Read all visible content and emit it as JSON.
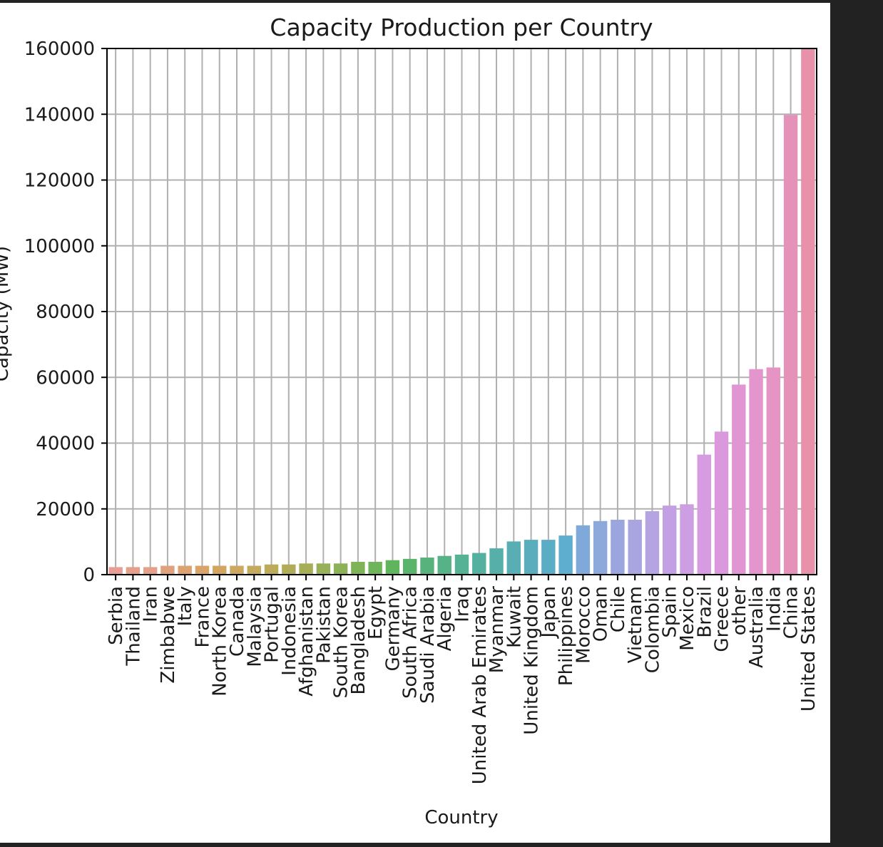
{
  "colors": {
    "page_background": "#222222",
    "figure_background": "#ffffff",
    "grid": "#b0b0b0",
    "axes": "#000000",
    "text": "#1a1a1a"
  },
  "chart_data": {
    "type": "bar",
    "title": "Capacity Production per Country",
    "xlabel": "Country",
    "ylabel": "Capacity (MW)",
    "ylim": [
      0,
      160000
    ],
    "yticks": [
      0,
      20000,
      40000,
      60000,
      80000,
      100000,
      120000,
      140000,
      160000
    ],
    "grid": true,
    "legend": "none",
    "categories": [
      "Serbia",
      "Thailand",
      "Iran",
      "Zimbabwe",
      "Italy",
      "France",
      "North Korea",
      "Canada",
      "Malaysia",
      "Portugal",
      "Indonesia",
      "Afghanistan",
      "Pakistan",
      "South Korea",
      "Bangladesh",
      "Egypt",
      "Germany",
      "South Africa",
      "Saudi Arabia",
      "Algeria",
      "Iraq",
      "United Arab Emirates",
      "Myanmar",
      "Kuwait",
      "United Kingdom",
      "Japan",
      "Philippines",
      "Morocco",
      "Oman",
      "Chile",
      "Vietnam",
      "Colombia",
      "Spain",
      "Mexico",
      "Brazil",
      "Greece",
      "other",
      "Australia",
      "India",
      "China",
      "United States"
    ],
    "values": [
      2300,
      2300,
      2300,
      2700,
      2700,
      2700,
      2700,
      2700,
      2700,
      3100,
      3100,
      3400,
      3400,
      3400,
      3900,
      3900,
      4400,
      4800,
      5200,
      5700,
      6100,
      6600,
      8000,
      10100,
      10600,
      10600,
      11900,
      15000,
      16300,
      16700,
      16700,
      19300,
      21000,
      21400,
      36500,
      43500,
      57800,
      62500,
      63000,
      139800,
      160000
    ],
    "bar_colors": [
      "#e89e96",
      "#e5a08b",
      "#e5a08b",
      "#e0a27c",
      "#dca370",
      "#d9a36a",
      "#d2a660",
      "#cca860",
      "#c4aa5e",
      "#bdab5c",
      "#b2ac5a",
      "#a6ae58",
      "#98b058",
      "#8cb158",
      "#7eb358",
      "#6eb45a",
      "#60b45e",
      "#59b46c",
      "#57b37b",
      "#56b287",
      "#56b294",
      "#56b09f",
      "#57afa9",
      "#58aeb3",
      "#59adbc",
      "#5badc6",
      "#5eaed0",
      "#7fa9d8",
      "#8da8db",
      "#9ba6de",
      "#a8a5e0",
      "#b5a3e2",
      "#c3a0e3",
      "#cd9ee2",
      "#d69be0",
      "#dc98dc",
      "#e196d4",
      "#e395cc",
      "#e594c3",
      "#e592b9",
      "#e891aa"
    ]
  }
}
